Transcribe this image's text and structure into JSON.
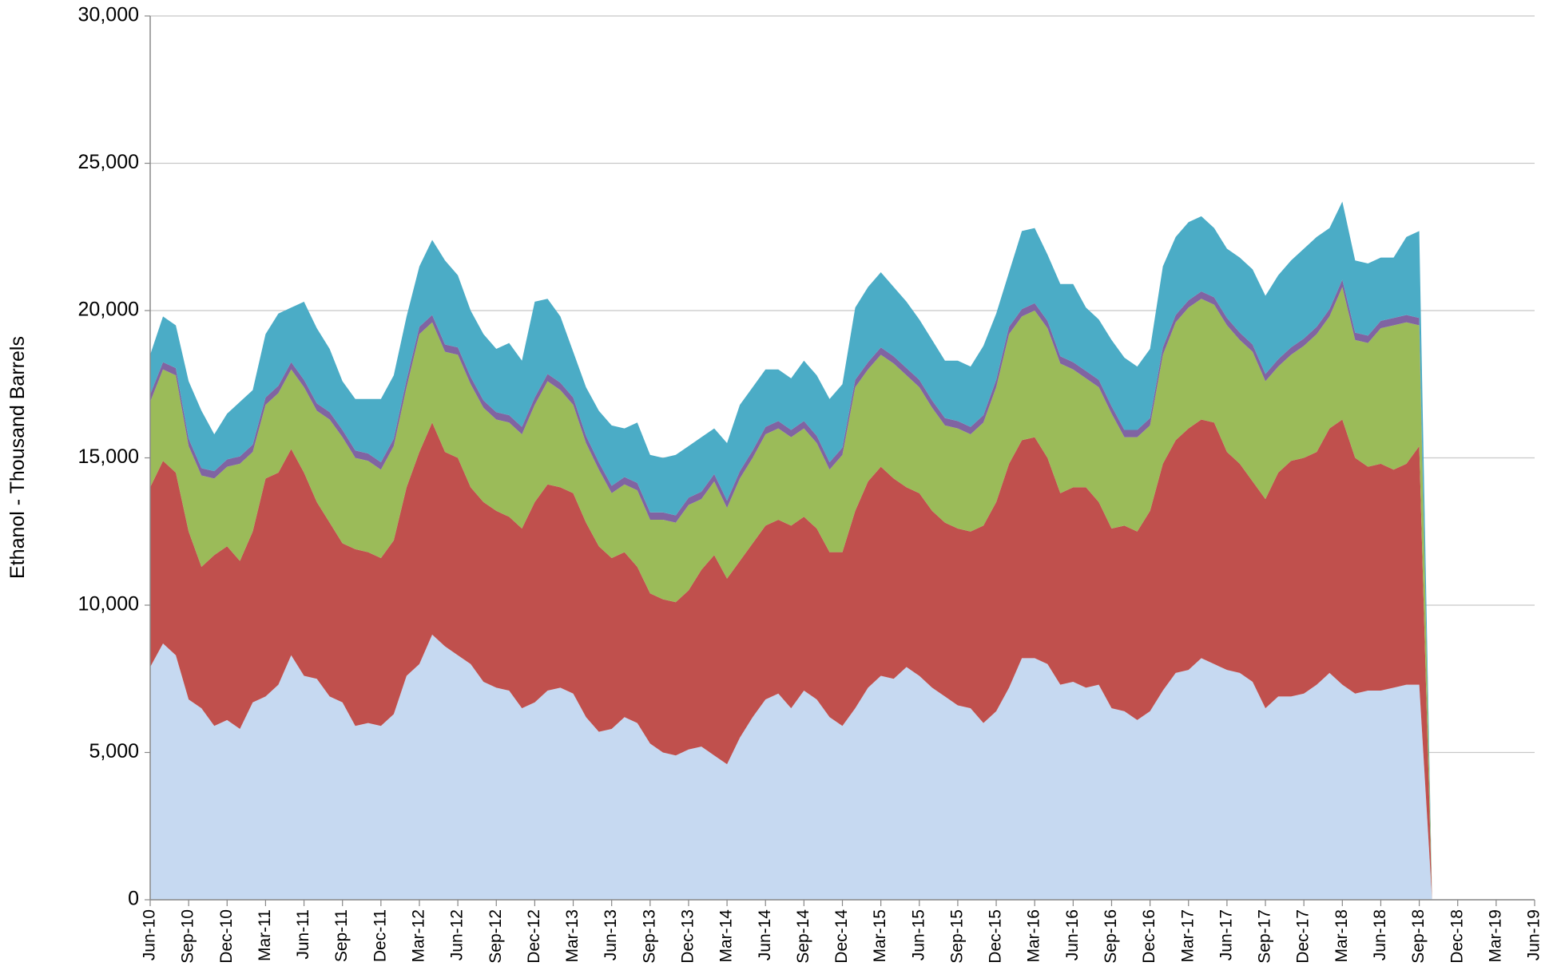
{
  "chart_data": {
    "type": "stacked-area",
    "y_label": "Ethanol - Thousand Barrels",
    "x": [
      "2010-06",
      "2010-07",
      "2010-08",
      "2010-09",
      "2010-10",
      "2010-11",
      "2010-12",
      "2011-01",
      "2011-02",
      "2011-03",
      "2011-04",
      "2011-05",
      "2011-06",
      "2011-07",
      "2011-08",
      "2011-09",
      "2011-10",
      "2011-11",
      "2011-12",
      "2012-01",
      "2012-02",
      "2012-03",
      "2012-04",
      "2012-05",
      "2012-06",
      "2012-07",
      "2012-08",
      "2012-09",
      "2012-10",
      "2012-11",
      "2012-12",
      "2013-01",
      "2013-02",
      "2013-03",
      "2013-04",
      "2013-05",
      "2013-06",
      "2013-07",
      "2013-08",
      "2013-09",
      "2013-10",
      "2013-11",
      "2013-12",
      "2014-01",
      "2014-02",
      "2014-03",
      "2014-04",
      "2014-05",
      "2014-06",
      "2014-07",
      "2014-08",
      "2014-09",
      "2014-10",
      "2014-11",
      "2014-12",
      "2015-01",
      "2015-02",
      "2015-03",
      "2015-04",
      "2015-05",
      "2015-06",
      "2015-07",
      "2015-08",
      "2015-09",
      "2015-10",
      "2015-11",
      "2015-12",
      "2016-01",
      "2016-02",
      "2016-03",
      "2016-04",
      "2016-05",
      "2016-06",
      "2016-07",
      "2016-08",
      "2016-09",
      "2016-10",
      "2016-11",
      "2016-12",
      "2017-01",
      "2017-02",
      "2017-03",
      "2017-04",
      "2017-05",
      "2017-06",
      "2017-07",
      "2017-08",
      "2017-09",
      "2017-10",
      "2017-11",
      "2017-12",
      "2018-01",
      "2018-02",
      "2018-03",
      "2018-04",
      "2018-05",
      "2018-06",
      "2018-07",
      "2018-08",
      "2018-09",
      "2018-10",
      "2018-11",
      "2018-12",
      "2019-01",
      "2019-02",
      "2019-03",
      "2019-04",
      "2019-05",
      "2019-06"
    ],
    "series": [
      {
        "color": "#c6d9f1",
        "values": [
          7900,
          8700,
          8300,
          6800,
          6500,
          5900,
          6100,
          5800,
          6700,
          6900,
          7300,
          8300,
          7600,
          7500,
          6900,
          6700,
          5900,
          6000,
          5900,
          6300,
          7600,
          8000,
          9000,
          8600,
          8300,
          8000,
          7400,
          7200,
          7100,
          6500,
          6700,
          7100,
          7200,
          7000,
          6200,
          5700,
          5800,
          6200,
          6000,
          5300,
          5000,
          4900,
          5100,
          5200,
          4900,
          4600,
          5500,
          6200,
          6800,
          7000,
          6500,
          7100,
          6800,
          6200,
          5900,
          6500,
          7200,
          7600,
          7500,
          7900,
          7600,
          7200,
          6900,
          6600,
          6500,
          6000,
          6400,
          7200,
          8200,
          8200,
          8000,
          7300,
          7400,
          7200,
          7300,
          6500,
          6400,
          6100,
          6400,
          7100,
          7700,
          7800,
          8200,
          8000,
          7800,
          7700,
          7400,
          6500,
          6900,
          6900,
          7000,
          7300,
          7700,
          7300,
          7000,
          7100,
          7100,
          7200,
          7300,
          7300,
          0,
          0,
          0,
          0,
          0,
          0,
          0,
          0,
          0
        ]
      },
      {
        "color": "#c0504d",
        "values": [
          6100,
          6200,
          6200,
          5700,
          4800,
          5800,
          5900,
          5700,
          5800,
          7400,
          7200,
          7000,
          6900,
          6000,
          5900,
          5400,
          6000,
          5800,
          5700,
          5900,
          6400,
          7200,
          7200,
          6600,
          6700,
          6000,
          6100,
          6000,
          5900,
          6100,
          6800,
          7000,
          6800,
          6800,
          6600,
          6300,
          5800,
          5600,
          5300,
          5100,
          5200,
          5200,
          5400,
          6000,
          6800,
          6300,
          6000,
          5900,
          5900,
          5900,
          6200,
          5900,
          5800,
          5600,
          5900,
          6700,
          7000,
          7100,
          6800,
          6100,
          6200,
          6000,
          5900,
          6000,
          6000,
          6700,
          7100,
          7600,
          7400,
          7500,
          7000,
          6500,
          6600,
          6800,
          6200,
          6100,
          6300,
          6400,
          6800,
          7700,
          7900,
          8200,
          8100,
          8200,
          7400,
          7100,
          6800,
          7100,
          7600,
          8000,
          8000,
          7900,
          8300,
          9000,
          8000,
          7600,
          7700,
          7400,
          7500,
          8100,
          0,
          0,
          0,
          0,
          0,
          0,
          0,
          0,
          0
        ]
      },
      {
        "color": "#9bbb59",
        "values": [
          2900,
          3100,
          3300,
          2900,
          3100,
          2600,
          2700,
          3300,
          2700,
          2500,
          2700,
          2700,
          2900,
          3100,
          3500,
          3600,
          3100,
          3100,
          3000,
          3200,
          3400,
          4000,
          3400,
          3400,
          3500,
          3500,
          3200,
          3100,
          3200,
          3200,
          3300,
          3500,
          3300,
          3000,
          2700,
          2600,
          2200,
          2300,
          2600,
          2500,
          2700,
          2700,
          2900,
          2400,
          2500,
          2400,
          2800,
          2900,
          3100,
          3100,
          3000,
          3000,
          2900,
          2800,
          3300,
          4200,
          3800,
          3800,
          3900,
          3800,
          3600,
          3500,
          3300,
          3400,
          3300,
          3500,
          3900,
          4400,
          4200,
          4300,
          4400,
          4400,
          4000,
          3700,
          3900,
          3900,
          3000,
          3200,
          2900,
          3700,
          4000,
          4100,
          4100,
          4000,
          4300,
          4200,
          4400,
          4000,
          3600,
          3600,
          3800,
          4000,
          3800,
          4500,
          4000,
          4200,
          4600,
          4900,
          4800,
          4100,
          0,
          0,
          0,
          0,
          0,
          0,
          0,
          0,
          0
        ]
      },
      {
        "color": "#8064a2",
        "values": [
          250,
          250,
          250,
          250,
          250,
          250,
          250,
          250,
          250,
          250,
          250,
          250,
          250,
          250,
          250,
          250,
          250,
          250,
          250,
          250,
          250,
          250,
          250,
          250,
          250,
          250,
          250,
          250,
          250,
          250,
          250,
          250,
          250,
          250,
          250,
          250,
          250,
          250,
          250,
          250,
          250,
          250,
          250,
          250,
          250,
          250,
          250,
          250,
          250,
          250,
          250,
          250,
          250,
          250,
          250,
          250,
          250,
          250,
          250,
          250,
          250,
          250,
          250,
          250,
          250,
          250,
          250,
          250,
          250,
          250,
          250,
          250,
          250,
          250,
          250,
          250,
          250,
          250,
          250,
          250,
          250,
          250,
          250,
          250,
          250,
          250,
          250,
          250,
          250,
          250,
          250,
          250,
          250,
          250,
          250,
          250,
          250,
          250,
          250,
          250,
          0,
          0,
          0,
          0,
          0,
          0,
          0,
          0,
          0
        ]
      },
      {
        "color": "#4bacc6",
        "values": [
          1350,
          1550,
          1450,
          1950,
          1950,
          1250,
          1550,
          1850,
          1850,
          2150,
          2450,
          1850,
          2650,
          2550,
          2150,
          1650,
          1750,
          1850,
          2150,
          2150,
          2150,
          2050,
          2550,
          2850,
          2450,
          2250,
          2250,
          2150,
          2450,
          2250,
          3250,
          2550,
          2250,
          1550,
          1650,
          1750,
          2050,
          1650,
          2050,
          1950,
          1850,
          2050,
          1750,
          1850,
          1550,
          1950,
          2250,
          2150,
          1950,
          1750,
          1750,
          2050,
          2050,
          2150,
          2150,
          2450,
          2550,
          2550,
          2350,
          2250,
          2050,
          2050,
          1950,
          2050,
          2050,
          2350,
          2250,
          1850,
          2650,
          2550,
          2250,
          2450,
          2650,
          2150,
          2050,
          2250,
          2450,
          2150,
          2350,
          2750,
          2650,
          2650,
          2550,
          2350,
          2350,
          2550,
          2550,
          2650,
          2850,
          2950,
          3050,
          3050,
          2750,
          2650,
          2450,
          2450,
          2150,
          2050,
          2650,
          2950,
          0,
          0,
          0,
          0,
          0,
          0,
          0,
          0,
          0
        ]
      }
    ],
    "ylim": [
      0,
      30000
    ],
    "yticks": [
      0,
      {
        "value": 5000,
        "label": "5,000"
      },
      {
        "value": 10000,
        "label": "10,000"
      },
      {
        "value": 15000,
        "label": "15,000"
      },
      {
        "value": 20000,
        "label": "20,000"
      },
      {
        "value": 25000,
        "label": "25,000"
      },
      {
        "value": 30000,
        "label": "30,000"
      }
    ],
    "xticks": [
      {
        "value": "2010-06",
        "label": "Jun-10"
      },
      {
        "value": "2010-09",
        "label": "Sep-10"
      },
      {
        "value": "2010-12",
        "label": "Dec-10"
      },
      {
        "value": "2011-03",
        "label": "Mar-11"
      },
      {
        "value": "2011-06",
        "label": "Jun-11"
      },
      {
        "value": "2011-09",
        "label": "Sep-11"
      },
      {
        "value": "2011-12",
        "label": "Dec-11"
      },
      {
        "value": "2012-03",
        "label": "Mar-12"
      },
      {
        "value": "2012-06",
        "label": "Jun-12"
      },
      {
        "value": "2012-09",
        "label": "Sep-12"
      },
      {
        "value": "2012-12",
        "label": "Dec-12"
      },
      {
        "value": "2013-03",
        "label": "Mar-13"
      },
      {
        "value": "2013-06",
        "label": "Jun-13"
      },
      {
        "value": "2013-09",
        "label": "Sep-13"
      },
      {
        "value": "2013-12",
        "label": "Dec-13"
      },
      {
        "value": "2014-03",
        "label": "Mar-14"
      },
      {
        "value": "2014-06",
        "label": "Jun-14"
      },
      {
        "value": "2014-09",
        "label": "Sep-14"
      },
      {
        "value": "2014-12",
        "label": "Dec-14"
      },
      {
        "value": "2015-03",
        "label": "Mar-15"
      },
      {
        "value": "2015-06",
        "label": "Jun-15"
      },
      {
        "value": "2015-09",
        "label": "Sep-15"
      },
      {
        "value": "2015-12",
        "label": "Dec-15"
      },
      {
        "value": "2016-03",
        "label": "Mar-16"
      },
      {
        "value": "2016-06",
        "label": "Jun-16"
      },
      {
        "value": "2016-09",
        "label": "Sep-16"
      },
      {
        "value": "2016-12",
        "label": "Dec-16"
      },
      {
        "value": "2017-03",
        "label": "Mar-17"
      },
      {
        "value": "2017-06",
        "label": "Jun-17"
      },
      {
        "value": "2017-09",
        "label": "Sep-17"
      },
      {
        "value": "2017-12",
        "label": "Dec-17"
      },
      {
        "value": "2018-03",
        "label": "Mar-18"
      },
      {
        "value": "2018-06",
        "label": "Jun-18"
      },
      {
        "value": "2018-09",
        "label": "Sep-18"
      },
      {
        "value": "2018-12",
        "label": "Dec-18"
      },
      {
        "value": "2019-03",
        "label": "Mar-19"
      },
      {
        "value": "2019-06",
        "label": "Jun-19"
      }
    ],
    "grid": true
  }
}
